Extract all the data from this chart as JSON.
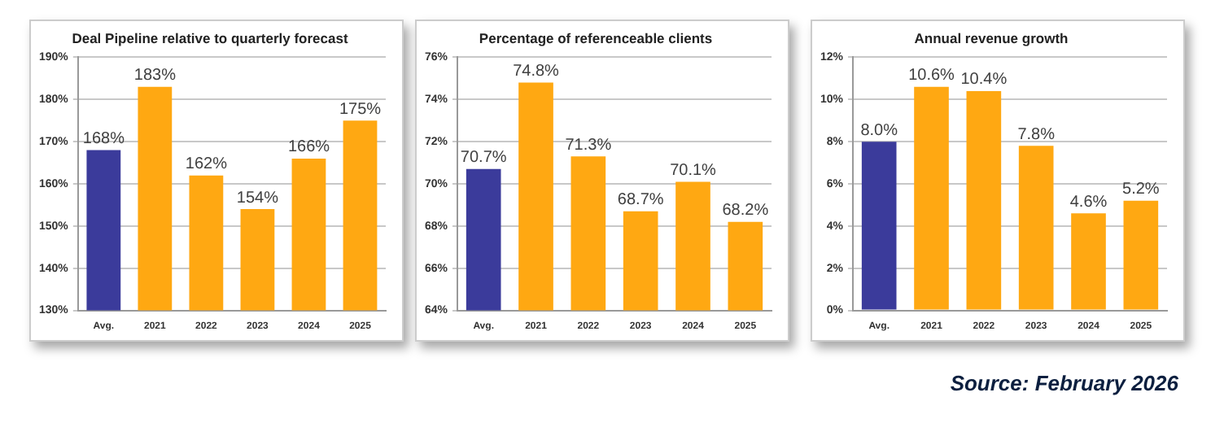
{
  "chart_data": [
    {
      "type": "bar",
      "title": "Deal Pipeline relative to quarterly forecast",
      "categories": [
        "Avg.",
        "2021",
        "2022",
        "2023",
        "2024",
        "2025"
      ],
      "values": [
        168,
        183,
        162,
        154,
        166,
        175
      ],
      "colors": [
        "#3b3b9b",
        "#ffa812",
        "#ffa812",
        "#ffa812",
        "#ffa812",
        "#ffa812"
      ],
      "value_labels": [
        "168%",
        "183%",
        "162%",
        "154%",
        "166%",
        "175%"
      ],
      "ylim": [
        130,
        190
      ],
      "yticks": [
        {
          "value": 130,
          "label": "130%"
        },
        {
          "value": 140,
          "label": "140%"
        },
        {
          "value": 150,
          "label": "150%"
        },
        {
          "value": 160,
          "label": "160%"
        },
        {
          "value": 170,
          "label": "170%"
        },
        {
          "value": 180,
          "label": "180%"
        },
        {
          "value": 190,
          "label": "190%"
        }
      ],
      "grid": "y"
    },
    {
      "type": "bar",
      "title": "Percentage of referenceable clients",
      "categories": [
        "Avg.",
        "2021",
        "2022",
        "2023",
        "2024",
        "2025"
      ],
      "values": [
        70.7,
        74.8,
        71.3,
        68.7,
        70.1,
        68.2
      ],
      "colors": [
        "#3b3b9b",
        "#ffa812",
        "#ffa812",
        "#ffa812",
        "#ffa812",
        "#ffa812"
      ],
      "value_labels": [
        "70.7%",
        "74.8%",
        "71.3%",
        "68.7%",
        "70.1%",
        "68.2%"
      ],
      "ylim": [
        64,
        76
      ],
      "yticks": [
        {
          "value": 64,
          "label": "64%"
        },
        {
          "value": 66,
          "label": "66%"
        },
        {
          "value": 68,
          "label": "68%"
        },
        {
          "value": 70,
          "label": "70%"
        },
        {
          "value": 72,
          "label": "72%"
        },
        {
          "value": 74,
          "label": "74%"
        },
        {
          "value": 76,
          "label": "76%"
        }
      ],
      "grid": "y"
    },
    {
      "type": "bar",
      "title": "Annual revenue growth",
      "categories": [
        "Avg.",
        "2021",
        "2022",
        "2023",
        "2024",
        "2025"
      ],
      "values": [
        8.0,
        10.6,
        10.4,
        7.8,
        4.6,
        5.2
      ],
      "colors": [
        "#3b3b9b",
        "#ffa812",
        "#ffa812",
        "#ffa812",
        "#ffa812",
        "#ffa812"
      ],
      "value_labels": [
        "8.0%",
        "10.6%",
        "10.4%",
        "7.8%",
        "4.6%",
        "5.2%"
      ],
      "ylim": [
        0,
        12
      ],
      "yticks": [
        {
          "value": 0,
          "label": "0%"
        },
        {
          "value": 2,
          "label": "2%"
        },
        {
          "value": 4,
          "label": "4%"
        },
        {
          "value": 6,
          "label": "6%"
        },
        {
          "value": 8,
          "label": "8%"
        },
        {
          "value": 10,
          "label": "10%"
        },
        {
          "value": 12,
          "label": "12%"
        }
      ],
      "grid": "y",
      "annotations": [
        "Source: February 2026"
      ]
    }
  ]
}
